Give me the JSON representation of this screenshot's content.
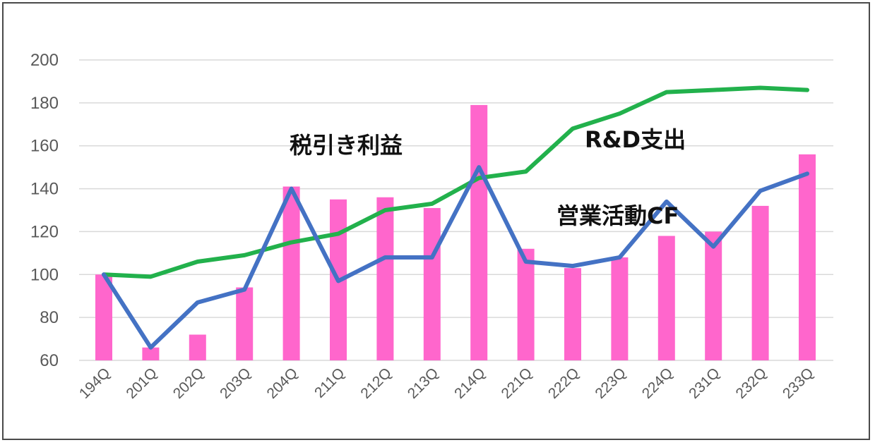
{
  "chart_data": {
    "type": "bar",
    "title": "",
    "xlabel": "",
    "ylabel": "",
    "ylim": [
      60,
      200
    ],
    "yticks": [
      60,
      80,
      100,
      120,
      140,
      160,
      180,
      200
    ],
    "grid": true,
    "categories": [
      "194Q",
      "201Q",
      "202Q",
      "203Q",
      "204Q",
      "211Q",
      "212Q",
      "213Q",
      "214Q",
      "221Q",
      "222Q",
      "223Q",
      "224Q",
      "231Q",
      "232Q",
      "233Q"
    ],
    "series": [
      {
        "name": "税引き利益",
        "kind": "bar",
        "color": "#ff66cc",
        "values": [
          100,
          66,
          72,
          94,
          141,
          135,
          136,
          131,
          179,
          112,
          103,
          108,
          118,
          120,
          132,
          156
        ]
      },
      {
        "name": "R&D支出",
        "kind": "line",
        "color": "#22b14c",
        "values": [
          100,
          99,
          106,
          109,
          115,
          119,
          130,
          133,
          145,
          148,
          168,
          175,
          185,
          186,
          187,
          186
        ]
      },
      {
        "name": "営業活動CF",
        "kind": "line",
        "color": "#4472c4",
        "values": [
          100,
          66,
          87,
          93,
          140,
          97,
          108,
          108,
          150,
          106,
          104,
          108,
          134,
          113,
          139,
          147
        ]
      }
    ],
    "annotations": [
      {
        "text": "税引き利益",
        "series": 0
      },
      {
        "text": "R&D支出",
        "series": 1
      },
      {
        "text": "営業活動CF",
        "series": 2
      }
    ]
  }
}
